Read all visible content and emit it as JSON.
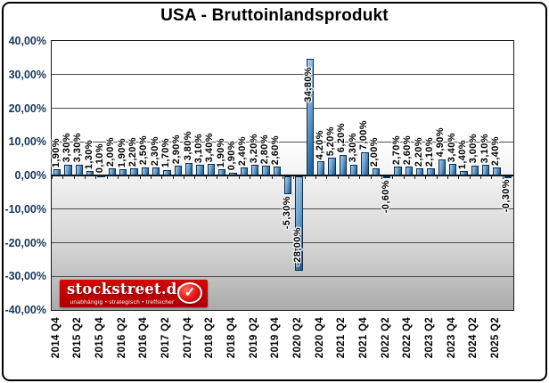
{
  "title": "USA - Bruttoinlandsprodukt",
  "chart_data": {
    "type": "bar",
    "title": "USA - Bruttoinlandsprodukt",
    "xlabel": "",
    "ylabel": "",
    "ylim": [
      -40,
      40
    ],
    "grid": true,
    "y_tick_labels": [
      "40,00%",
      "30,00%",
      "20,00%",
      "10,00%",
      "0,00%",
      "-10,00%",
      "-20,00%",
      "-30,00%",
      "-40,00%"
    ],
    "y_tick_values": [
      40,
      30,
      20,
      10,
      0,
      -10,
      -20,
      -30,
      -40
    ],
    "x_tick_labels": [
      "2014 Q4",
      "2015 Q2",
      "2015 Q4",
      "2016 Q2",
      "2016 Q4",
      "2017 Q2",
      "2017 Q4",
      "2018 Q2",
      "2018 Q4",
      "2019 Q2",
      "2019 Q4",
      "2020 Q2",
      "2020 Q4",
      "2021 Q2",
      "2021 Q4",
      "2022 Q2",
      "2022 Q4",
      "2023 Q2",
      "2023 Q4",
      "2024 Q2",
      "2025 Q2"
    ],
    "x_tick_interval": 2,
    "values": [
      1.9,
      3.3,
      3.3,
      1.3,
      0.1,
      2.0,
      1.9,
      2.2,
      2.5,
      2.3,
      1.7,
      2.9,
      3.8,
      3.1,
      3.4,
      1.9,
      0.9,
      2.4,
      3.2,
      2.8,
      2.6,
      -5.3,
      -28.0,
      34.8,
      4.2,
      5.2,
      6.2,
      3.3,
      7.0,
      2.0,
      -0.6,
      2.7,
      2.6,
      2.2,
      2.1,
      4.9,
      3.4,
      1.4,
      3.0,
      3.1,
      2.4,
      -0.3
    ],
    "value_labels": [
      "1,90%",
      "3,30%",
      "3,30%",
      "1,30%",
      "0,10%",
      "2,00%",
      "1,90%",
      "2,20%",
      "2,50%",
      "2,30%",
      "1,70%",
      "2,90%",
      "3,80%",
      "3,10%",
      "3,40%",
      "1,90%",
      "0,90%",
      "2,40%",
      "3,20%",
      "2,80%",
      "2,60%",
      "-5,30%",
      "-28,00%",
      "34,80%",
      "4,20%",
      "5,20%",
      "6,20%",
      "3,30%",
      "7,00%",
      "2,00%",
      "-0,60%",
      "2,70%",
      "2,60%",
      "2,20%",
      "2,10%",
      "4,90%",
      "3,40%",
      "1,40%",
      "3,00%",
      "3,10%",
      "2,40%",
      "-0,30%"
    ],
    "colors": {
      "bar_light": "#aacdea",
      "bar_mid": "#6aa0cf",
      "bar_dark": "#1b5c94",
      "bar_border": "#0e2f4d",
      "axis_label_blue": "#17375E",
      "gridline": "#4d4d4d"
    }
  },
  "logo": {
    "text": "stockstreet.de",
    "tagline": "unabhängig • strategisch • treffsicher",
    "check_icon": "✓",
    "bg_color": "#c00000"
  }
}
